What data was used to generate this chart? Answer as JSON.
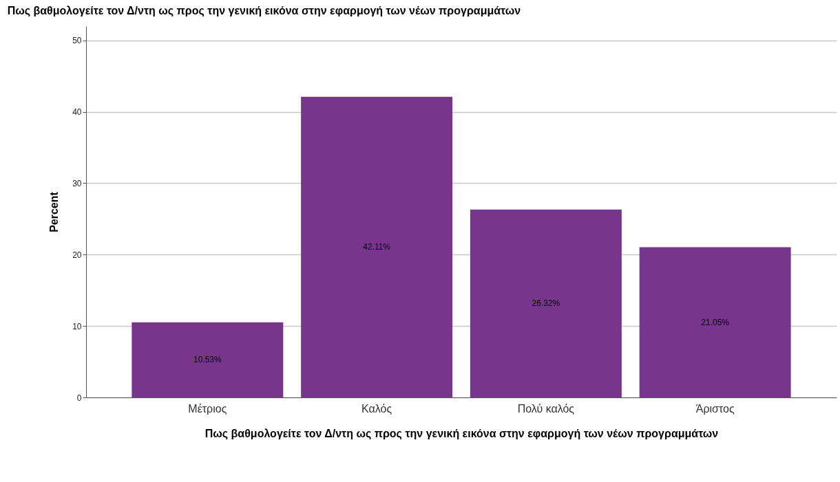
{
  "chart_data": {
    "type": "bar",
    "title": "Πως βαθμολογείτε τον Δ/ντη ως προς την γενική εικόνα στην εφαρμογή των νέων προγραμμάτων",
    "xlabel": "Πως βαθμολογείτε τον Δ/ντη ως προς την γενική εικόνα στην εφαρμογή των νέων προγραμμάτων",
    "ylabel": "Percent",
    "categories": [
      "Μέτριος",
      "Καλός",
      "Πολύ καλός",
      "Άριστος"
    ],
    "values": [
      10.53,
      42.11,
      26.32,
      21.05
    ],
    "value_labels": [
      "10.53%",
      "42.11%",
      "26.32%",
      "21.05%"
    ],
    "color": "#77368b",
    "ylim": [
      0,
      52
    ],
    "yticks": [
      0,
      10,
      20,
      30,
      40,
      50
    ],
    "grid": "y"
  }
}
